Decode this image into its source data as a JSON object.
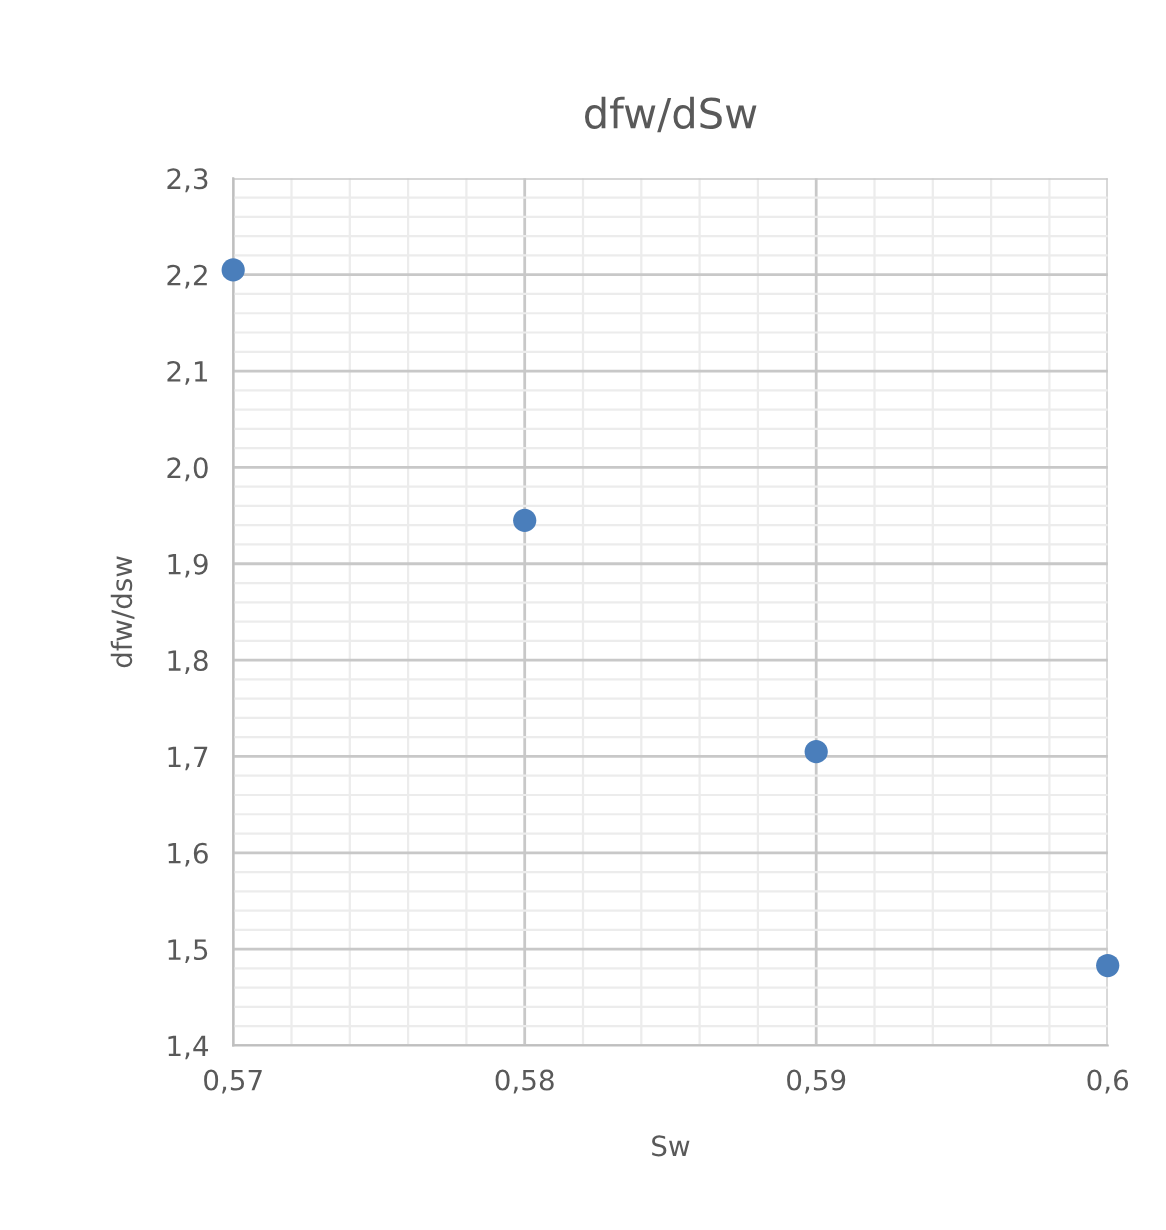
{
  "chart_data": {
    "type": "scatter",
    "title": "dfw/dSw",
    "xlabel": "Sw",
    "ylabel": "dfw/dsw",
    "x": [
      0.57,
      0.58,
      0.59,
      0.6
    ],
    "series": [
      {
        "color": "#4a7ebb",
        "values": [
          2.205,
          1.945,
          1.705,
          1.483
        ]
      }
    ],
    "xlim": [
      0.57,
      0.6
    ],
    "ylim": [
      1.4,
      2.3
    ],
    "xticks": [
      {
        "value": 0.57,
        "label": "0,57"
      },
      {
        "value": 0.58,
        "label": "0,58"
      },
      {
        "value": 0.59,
        "label": "0,59"
      },
      {
        "value": 0.6,
        "label": "0,6"
      }
    ],
    "yticks": [
      {
        "value": 1.4,
        "label": "1,4"
      },
      {
        "value": 1.5,
        "label": "1,5"
      },
      {
        "value": 1.6,
        "label": "1,6"
      },
      {
        "value": 1.7,
        "label": "1,7"
      },
      {
        "value": 1.8,
        "label": "1,8"
      },
      {
        "value": 1.9,
        "label": "1,9"
      },
      {
        "value": 2.0,
        "label": "2,0"
      },
      {
        "value": 2.1,
        "label": "2,1"
      },
      {
        "value": 2.2,
        "label": "2,2"
      },
      {
        "value": 2.3,
        "label": "2,3"
      }
    ],
    "grid": true,
    "marker": "circle"
  }
}
